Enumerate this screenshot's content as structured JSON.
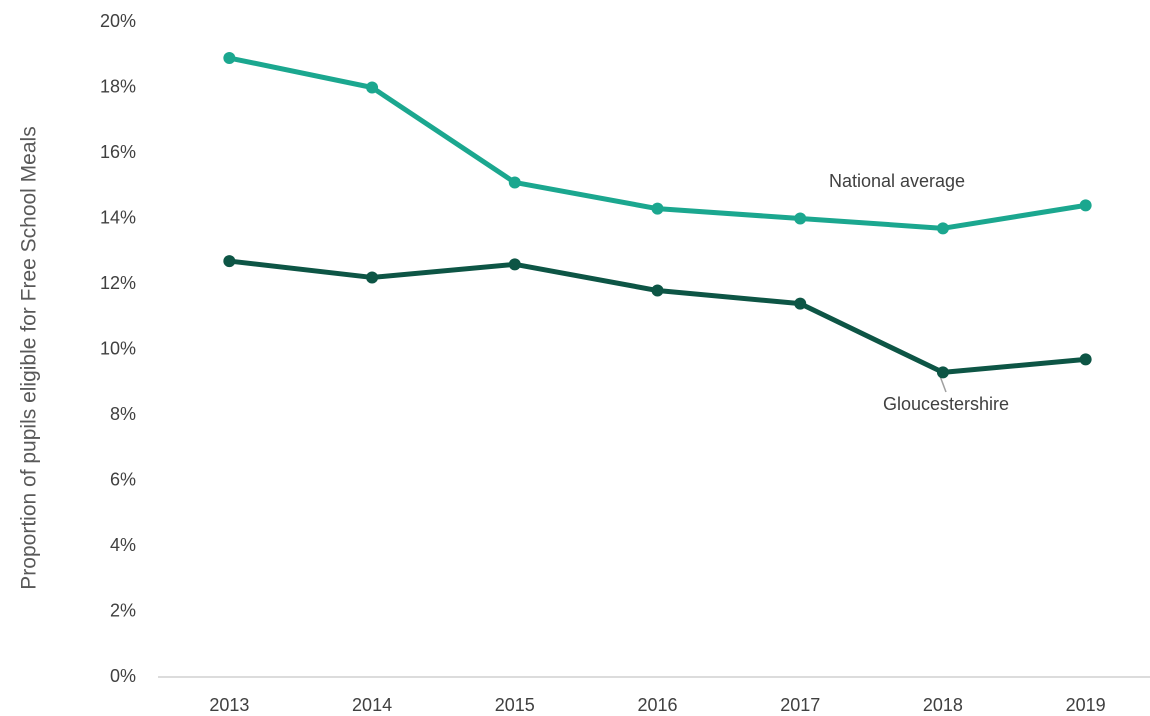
{
  "chart_data": {
    "type": "line",
    "y_label": "Proportion of pupils eligible for Free School Meals",
    "categories": [
      "2013",
      "2014",
      "2015",
      "2016",
      "2017",
      "2018",
      "2019"
    ],
    "series": [
      {
        "name": "National average",
        "color": "#1ba78f",
        "values": [
          18.9,
          18.0,
          15.1,
          14.3,
          14.0,
          13.7,
          14.4
        ]
      },
      {
        "name": "Gloucestershire",
        "color": "#0d5545",
        "values": [
          12.7,
          12.2,
          12.6,
          11.8,
          11.4,
          9.3,
          9.7
        ]
      }
    ],
    "ylim": [
      0,
      20
    ],
    "yticks": [
      {
        "value": 0,
        "label": "0%"
      },
      {
        "value": 2,
        "label": "2%"
      },
      {
        "value": 4,
        "label": "4%"
      },
      {
        "value": 6,
        "label": "6%"
      },
      {
        "value": 8,
        "label": "8%"
      },
      {
        "value": 10,
        "label": "10%"
      },
      {
        "value": 12,
        "label": "12%"
      },
      {
        "value": 14,
        "label": "14%"
      },
      {
        "value": 16,
        "label": "16%"
      },
      {
        "value": 18,
        "label": "18%"
      },
      {
        "value": 20,
        "label": "20%"
      }
    ],
    "grid": false
  }
}
